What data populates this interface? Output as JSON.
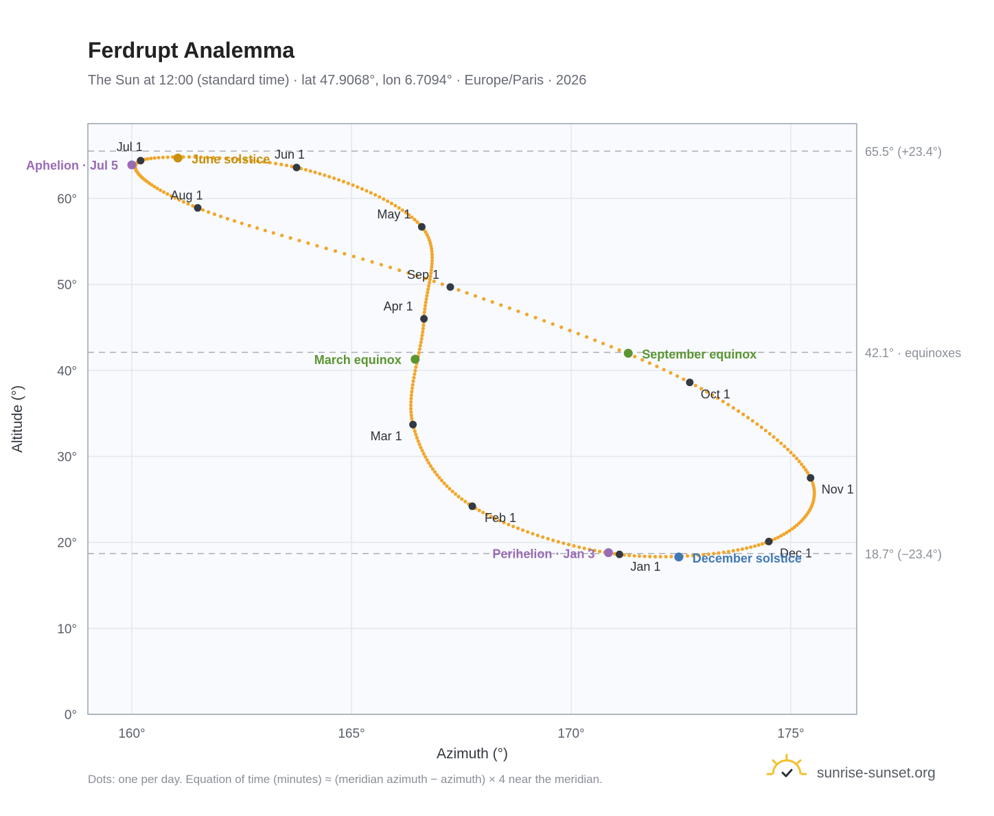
{
  "title": "Ferdrupt Analemma",
  "subtitle": "The Sun at 12:00 (standard time) · lat 47.9068°, lon 6.7094° · Europe/Paris · 2026",
  "footnote": "Dots: one per day. Equation of time (minutes) ≈ (meridian azimuth − azimuth) × 4 near the meridian.",
  "brand": {
    "name": "sunrise-sunset.org",
    "icon": "sun-logo-icon"
  },
  "colors": {
    "curve": "#f2a62a",
    "marker": "#333a44",
    "equinox": "#5a9532",
    "june_solstice": "#c98f0e",
    "december_solstice": "#3f78b6",
    "perihelion_aphelion": "#9a6ab5",
    "grid": "#e3e7ee",
    "plot_bg": "#f8fafd",
    "frame": "#9aa3b1",
    "reference_line": "#a9aeb6"
  },
  "chart_data": {
    "type": "scatter",
    "title": "Ferdrupt Analemma",
    "xlabel": "Azimuth (°)",
    "ylabel": "Altitude (°)",
    "xlim": [
      159,
      176.5
    ],
    "ylim": [
      0,
      68.7
    ],
    "x_ticks": [
      {
        "value": 160,
        "label": "160°"
      },
      {
        "value": 165,
        "label": "165°"
      },
      {
        "value": 170,
        "label": "170°"
      },
      {
        "value": 175,
        "label": "175°"
      }
    ],
    "y_ticks": [
      {
        "value": 0,
        "label": "0°"
      },
      {
        "value": 10,
        "label": "10°"
      },
      {
        "value": 20,
        "label": "20°"
      },
      {
        "value": 30,
        "label": "30°"
      },
      {
        "value": 40,
        "label": "40°"
      },
      {
        "value": 50,
        "label": "50°"
      },
      {
        "value": 60,
        "label": "60°"
      }
    ],
    "grid": true,
    "reference_lines": [
      {
        "altitude": 65.5,
        "label": "65.5° (+23.4°)"
      },
      {
        "altitude": 42.1,
        "label": "42.1° · equinoxes"
      },
      {
        "altitude": 18.7,
        "label": "18.7° (−23.4°)"
      }
    ],
    "monthly_points": [
      {
        "date": "Jan 1",
        "azimuth": 171.1,
        "altitude": 18.6
      },
      {
        "date": "Feb 1",
        "azimuth": 167.75,
        "altitude": 24.2
      },
      {
        "date": "Mar 1",
        "azimuth": 166.4,
        "altitude": 33.7
      },
      {
        "date": "Apr 1",
        "azimuth": 166.65,
        "altitude": 46.0
      },
      {
        "date": "May 1",
        "azimuth": 166.6,
        "altitude": 56.7
      },
      {
        "date": "Jun 1",
        "azimuth": 163.75,
        "altitude": 63.6
      },
      {
        "date": "Jul 1",
        "azimuth": 160.2,
        "altitude": 64.4
      },
      {
        "date": "Aug 1",
        "azimuth": 161.5,
        "altitude": 58.9
      },
      {
        "date": "Sep 1",
        "azimuth": 167.25,
        "altitude": 49.7
      },
      {
        "date": "Oct 1",
        "azimuth": 172.7,
        "altitude": 38.6
      },
      {
        "date": "Nov 1",
        "azimuth": 175.45,
        "altitude": 27.5
      },
      {
        "date": "Dec 1",
        "azimuth": 174.5,
        "altitude": 20.1
      }
    ],
    "events": [
      {
        "label": "March equinox",
        "azimuth": 166.45,
        "altitude": 41.3,
        "color_key": "equinox"
      },
      {
        "label": "June solstice",
        "azimuth": 161.05,
        "altitude": 64.7,
        "color_key": "june_solstice"
      },
      {
        "label": "September equinox",
        "azimuth": 171.3,
        "altitude": 42.0,
        "color_key": "equinox"
      },
      {
        "label": "December solstice",
        "azimuth": 172.45,
        "altitude": 18.3,
        "color_key": "december_solstice"
      },
      {
        "label": "Perihelion · Jan 3",
        "azimuth": 170.85,
        "altitude": 18.8,
        "color_key": "perihelion_aphelion"
      },
      {
        "label": "Aphelion · Jul 5",
        "azimuth": 160.0,
        "altitude": 63.9,
        "color_key": "perihelion_aphelion"
      }
    ]
  }
}
